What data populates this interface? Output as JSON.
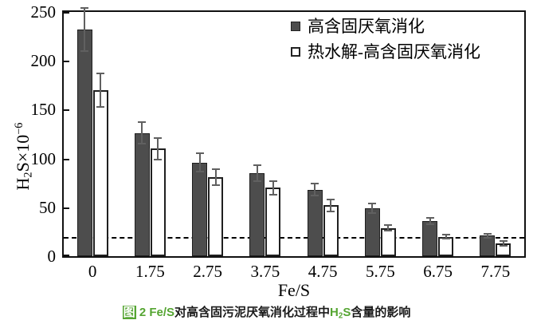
{
  "chart_data": {
    "type": "bar",
    "title": "",
    "xlabel": "Fe/S",
    "ylabel": "H2S×10^-6",
    "ylabel_segments": [
      {
        "text": "H"
      },
      {
        "text": "2",
        "sub": true
      },
      {
        "text": "S×10"
      },
      {
        "text": "−6",
        "sup": true
      }
    ],
    "categories": [
      "0",
      "1.75",
      "2.75",
      "3.75",
      "4.75",
      "5.75",
      "6.75",
      "7.75"
    ],
    "series": [
      {
        "name": "高含固厌氧消化",
        "fill": "#4d4d4d",
        "values": [
          232,
          126,
          96,
          85,
          68,
          49,
          36,
          21
        ],
        "errors": [
          23,
          12,
          10,
          9,
          7,
          6,
          4,
          3
        ]
      },
      {
        "name": "热水解-高含固厌氧消化",
        "fill": "#ffffff",
        "values": [
          170,
          110,
          81,
          70,
          52,
          29,
          20,
          13
        ],
        "errors": [
          18,
          12,
          9,
          8,
          7,
          4,
          3,
          3
        ]
      }
    ],
    "ylim": [
      0,
      250
    ],
    "yticks": [
      0,
      50,
      100,
      150,
      200,
      250
    ],
    "reference_line": 18,
    "grid": false,
    "legend_position": "top-right-inside",
    "error_bars": true
  },
  "caption": {
    "full_text": "图 2 Fe/S对高含固污泥厌氧消化过程中H2S含量的影响",
    "segments": [
      {
        "text": "图",
        "style": "highlight"
      },
      {
        "text": " 2 ",
        "style": "green"
      },
      {
        "text": "Fe/S",
        "style": "green"
      },
      {
        "text": "对高含固污泥厌氧消化过程中",
        "style": "dark"
      },
      {
        "text": "H",
        "style": "green"
      },
      {
        "text": "2",
        "style": "green",
        "sub": true
      },
      {
        "text": "S",
        "style": "green"
      },
      {
        "text": "含量的影响",
        "style": "dark"
      }
    ]
  },
  "colors": {
    "bar_dark": "#4d4d4d",
    "bar_light": "#ffffff",
    "error_bar": "#606060",
    "axis": "#111111",
    "highlight_green": "#55a532"
  }
}
